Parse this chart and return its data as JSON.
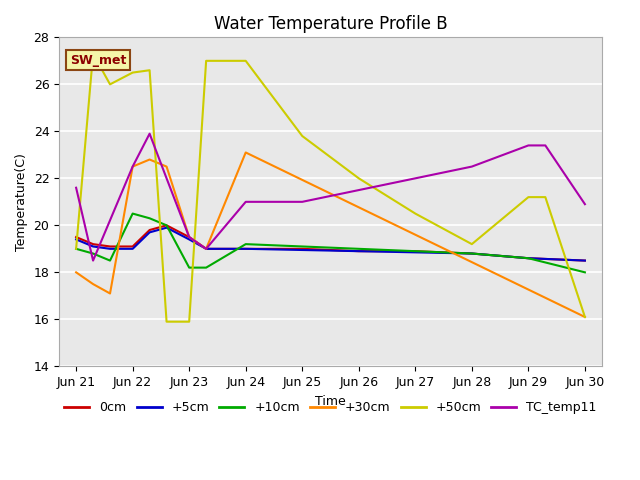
{
  "title": "Water Temperature Profile B",
  "xlabel": "Time",
  "ylabel": "Temperature(C)",
  "ylim": [
    14,
    28
  ],
  "background_color": "#e8e8e8",
  "annotation_label": "SW_met",
  "x_tick_labels": [
    "Jun 21",
    "Jun 22",
    "Jun 23",
    "Jun 24",
    "Jun 25",
    "Jun 26",
    "Jun 27",
    "Jun 28",
    "Jun 29",
    "Jun 30"
  ],
  "x_tick_pos": [
    0,
    1,
    2,
    3,
    4,
    5,
    6,
    7,
    8,
    9
  ],
  "series": {
    "0cm": {
      "color": "#cc0000",
      "x": [
        0,
        0.3,
        0.6,
        1.0,
        1.3,
        1.6,
        2.0,
        2.3,
        3,
        4,
        5,
        6,
        7,
        8,
        9
      ],
      "y": [
        19.5,
        19.2,
        19.1,
        19.1,
        19.8,
        20.0,
        19.5,
        19.0,
        19.0,
        19.0,
        18.9,
        18.9,
        18.8,
        18.6,
        18.5
      ]
    },
    "+5cm": {
      "color": "#0000cc",
      "x": [
        0,
        0.3,
        0.6,
        1.0,
        1.3,
        1.6,
        2.0,
        2.3,
        3,
        4,
        5,
        6,
        7,
        8,
        9
      ],
      "y": [
        19.4,
        19.1,
        19.0,
        19.0,
        19.7,
        19.9,
        19.4,
        19.0,
        19.0,
        18.95,
        18.9,
        18.85,
        18.8,
        18.6,
        18.5
      ]
    },
    "+10cm": {
      "color": "#00aa00",
      "x": [
        0,
        0.3,
        0.6,
        1.0,
        1.3,
        1.6,
        2.0,
        2.3,
        3,
        4,
        5,
        6,
        7,
        8,
        9
      ],
      "y": [
        19.0,
        18.8,
        18.5,
        20.5,
        20.3,
        20.0,
        18.2,
        18.2,
        19.2,
        19.1,
        19.0,
        18.9,
        18.8,
        18.6,
        18.0
      ]
    },
    "+30cm": {
      "color": "#ff8800",
      "x": [
        0,
        0.3,
        0.6,
        1.0,
        1.3,
        1.6,
        2.0,
        2.3,
        3,
        9
      ],
      "y": [
        18.0,
        17.5,
        17.1,
        22.5,
        22.8,
        22.5,
        19.5,
        19.0,
        23.1,
        16.1
      ]
    },
    "+50cm": {
      "color": "#cccc00",
      "x": [
        0,
        0.3,
        0.6,
        1.0,
        1.3,
        1.6,
        2.0,
        2.3,
        3,
        4,
        5,
        6,
        7,
        8,
        8.3,
        9
      ],
      "y": [
        19.0,
        27.3,
        26.0,
        26.5,
        26.6,
        15.9,
        15.9,
        27.0,
        27.0,
        23.8,
        22.0,
        20.5,
        19.2,
        21.2,
        21.2,
        16.1
      ]
    },
    "TC_temp11": {
      "color": "#aa00aa",
      "x": [
        0,
        0.3,
        1.0,
        1.3,
        1.6,
        2.0,
        2.3,
        3,
        4,
        5,
        6,
        7,
        8,
        8.3,
        9
      ],
      "y": [
        21.6,
        18.5,
        22.5,
        23.9,
        22.0,
        19.5,
        19.0,
        21.0,
        21.0,
        21.5,
        22.0,
        22.5,
        23.4,
        23.4,
        20.9
      ]
    }
  }
}
